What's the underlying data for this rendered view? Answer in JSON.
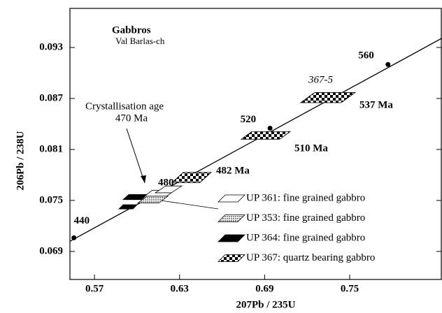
{
  "chart_data": {
    "type": "line",
    "title": "Gabbros",
    "subtitle": "Val Barlas-ch",
    "x_label": "207Pb / 235U",
    "y_label": "206Pb / 238U",
    "xlim": [
      0.5527,
      0.8146
    ],
    "ylim": [
      0.0657,
      0.0976
    ],
    "xticks": [
      0.57,
      0.63,
      0.69,
      0.75
    ],
    "yticks": [
      0.069,
      0.075,
      0.081,
      0.087,
      0.093
    ],
    "concordia": {
      "x": [
        0.5527,
        0.8151
      ],
      "y": [
        0.0702,
        0.0941
      ],
      "color": "#000000"
    },
    "age_points": {
      "x": [
        0.5555,
        0.6938,
        0.777
      ],
      "y": [
        0.0706,
        0.0835,
        0.091
      ],
      "labels": [
        "440",
        "520",
        "560"
      ]
    },
    "annotations": {
      "age_480": "480",
      "crystallisation": "Crystallisation age",
      "crystallisation_age": "470 Ma",
      "sample": "367-5",
      "age_537": "537 Ma",
      "age_510": "510 Ma",
      "age_482": "482 Ma"
    },
    "series": [
      {
        "name": "UP 361:  fine grained gabbro",
        "color": "#ffffff",
        "shapes": [
          {
            "x": [
              0.6035,
              0.6109,
              0.6267,
              0.6193
            ],
            "y": [
              0.0753,
              0.0762,
              0.0762,
              0.0753
            ]
          },
          {
            "x": [
              0.6129,
              0.6203,
              0.6316,
              0.6242
            ],
            "y": [
              0.0759,
              0.0767,
              0.0767,
              0.0759
            ]
          }
        ]
      },
      {
        "name": "UP 353:  fine grained gabbro",
        "color": "#b0b0b0",
        "shapes": [
          {
            "x": [
              0.6006,
              0.607,
              0.6218,
              0.6154
            ],
            "y": [
              0.0747,
              0.0755,
              0.0755,
              0.0747
            ]
          }
        ]
      },
      {
        "name": "UP 364:  fine grained gabbro",
        "color": "#000000",
        "shapes": [
          {
            "x": [
              0.5902,
              0.5942,
              0.607,
              0.603
            ],
            "y": [
              0.0751,
              0.0757,
              0.0757,
              0.0751
            ]
          },
          {
            "x": [
              0.5873,
              0.5902,
              0.6001,
              0.5971
            ],
            "y": [
              0.074,
              0.0745,
              0.0745,
              0.074
            ]
          }
        ]
      },
      {
        "name": "UP 367:   quartz bearing gabbro",
        "color": "#000000",
        "pattern": "checker",
        "shapes": [
          {
            "x": [
              0.7154,
              0.7253,
              0.7539,
              0.744
            ],
            "y": [
              0.0865,
              0.0877,
              0.0877,
              0.0865
            ]
          },
          {
            "x": [
              0.6735,
              0.6809,
              0.708,
              0.7006
            ],
            "y": [
              0.0822,
              0.0831,
              0.0831,
              0.0822
            ]
          },
          {
            "x": [
              0.6247,
              0.6326,
              0.6523,
              0.6444
            ],
            "y": [
              0.0771,
              0.0783,
              0.0783,
              0.0771
            ]
          }
        ]
      }
    ]
  }
}
